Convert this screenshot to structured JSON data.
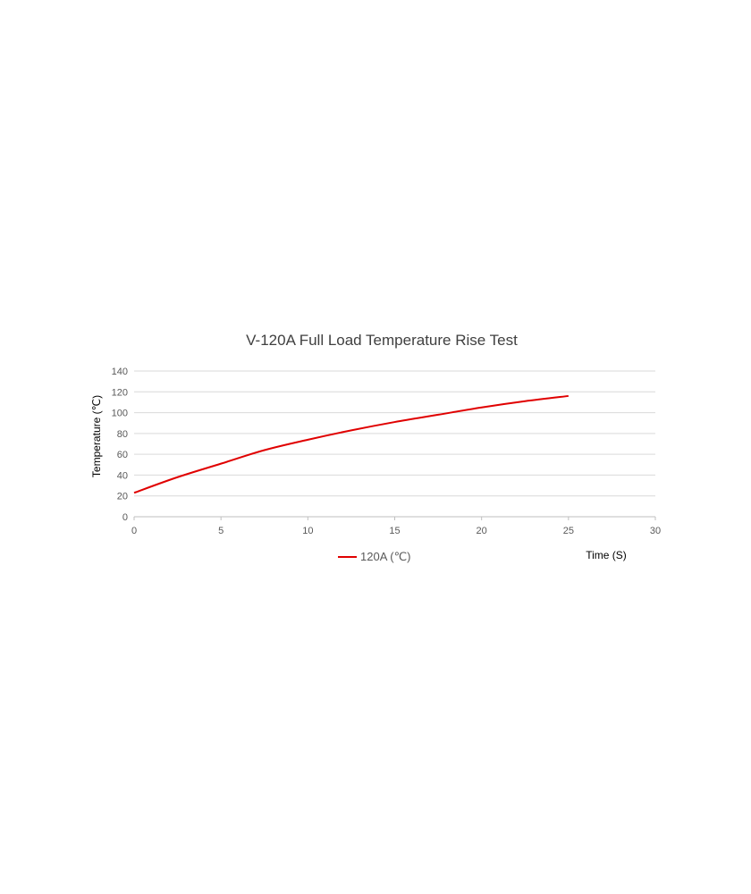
{
  "chart_data": {
    "type": "line",
    "title": "V-120A Full Load Temperature Rise Test",
    "xlabel": "Time (S)",
    "ylabel": "Temperature (℃)",
    "xlim": [
      0,
      30
    ],
    "ylim": [
      0,
      140
    ],
    "xticks": [
      0,
      5,
      10,
      15,
      20,
      25,
      30
    ],
    "yticks": [
      0,
      20,
      40,
      60,
      80,
      100,
      120,
      140
    ],
    "grid": "horizontal",
    "legend_position": "bottom",
    "series": [
      {
        "name": "120A (℃)",
        "color": "#e00000",
        "x": [
          0,
          2.5,
          5,
          7.5,
          10,
          12.5,
          15,
          17.5,
          20,
          22.5,
          25
        ],
        "y": [
          23,
          38,
          51,
          64,
          74,
          83,
          91,
          98,
          105,
          111,
          116
        ]
      }
    ]
  }
}
